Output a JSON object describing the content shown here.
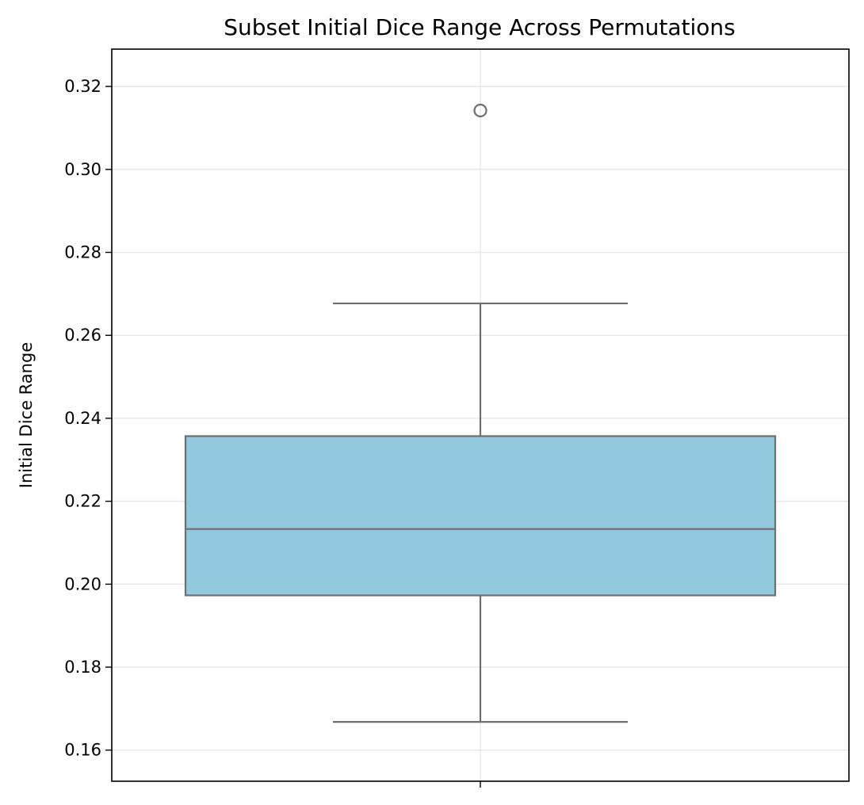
{
  "chart_data": {
    "type": "box",
    "title": "Subset Initial Dice Range Across Permutations",
    "xlabel": "",
    "ylabel": "Initial Dice Range",
    "ylim": [
      0.1525,
      0.329
    ],
    "yticks": [
      0.16,
      0.18,
      0.2,
      0.22,
      0.24,
      0.26,
      0.28,
      0.3,
      0.32
    ],
    "ytick_labels": [
      "0.16",
      "0.18",
      "0.20",
      "0.22",
      "0.24",
      "0.26",
      "0.28",
      "0.30",
      "0.32"
    ],
    "grid": true,
    "box": {
      "whisker_low": 0.1668,
      "q1": 0.1973,
      "median": 0.2133,
      "q3": 0.2357,
      "whisker_high": 0.2677,
      "outliers": [
        0.3142
      ]
    },
    "colors": {
      "box_fill": "#92c8de",
      "box_line": "#6e6e6e",
      "grid": "#e6e6e6",
      "axis": "#000000"
    }
  }
}
